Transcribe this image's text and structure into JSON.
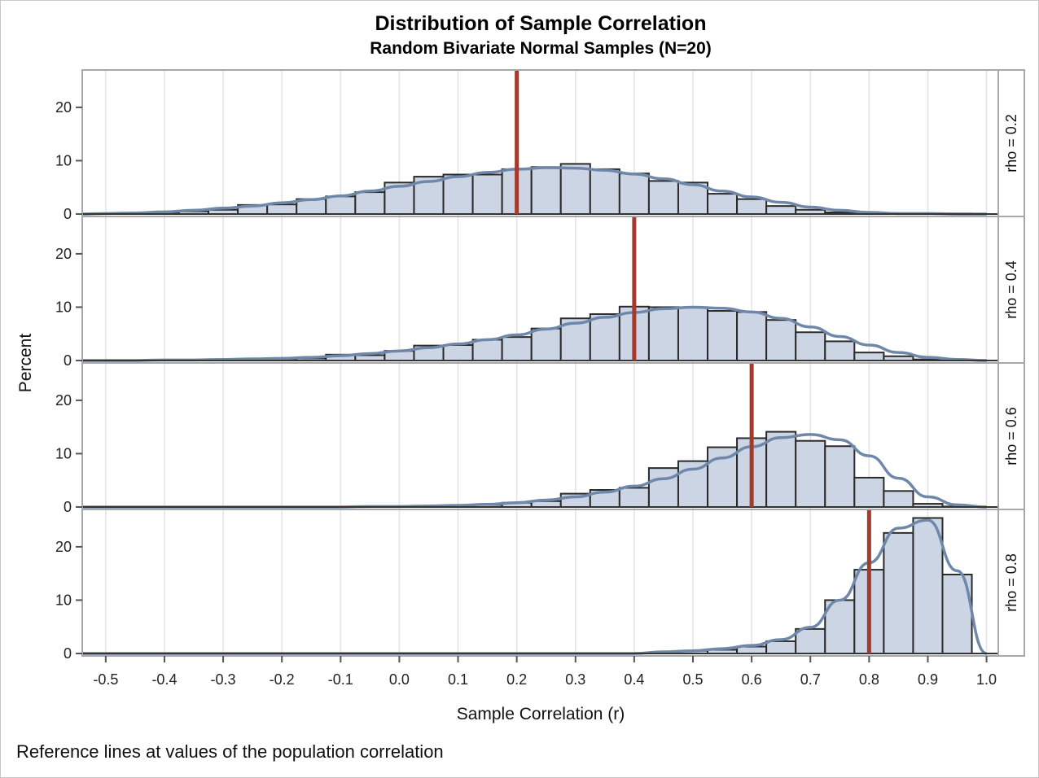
{
  "chart_data": {
    "type": "bar",
    "title": "Distribution of Sample Correlation",
    "subtitle": "Random Bivariate Normal Samples (N=20)",
    "xlabel": "Sample Correlation (r)",
    "ylabel": "Percent",
    "footnote": "Reference lines at values of the population correlation",
    "xlim": [
      -0.54,
      1.02
    ],
    "ylim": [
      0,
      27
    ],
    "x_ticks": [
      -0.5,
      -0.4,
      -0.3,
      -0.2,
      -0.1,
      0.0,
      0.1,
      0.2,
      0.3,
      0.4,
      0.5,
      0.6,
      0.7,
      0.8,
      0.9,
      1.0
    ],
    "x_tick_labels": [
      "-0.5",
      "-0.4",
      "-0.3",
      "-0.2",
      "-0.1",
      "0.0",
      "0.1",
      "0.2",
      "0.3",
      "0.4",
      "0.5",
      "0.6",
      "0.7",
      "0.8",
      "0.9",
      "1.0"
    ],
    "y_ticks": [
      0,
      10,
      20
    ],
    "y_tick_labels": [
      "0",
      "10",
      "20"
    ],
    "bin_width": 0.05,
    "grid": "vertical",
    "panels": [
      {
        "label": "rho = 0.2",
        "rho": 0.2,
        "bins_left": [
          -0.525,
          -0.475,
          -0.425,
          -0.375,
          -0.325,
          -0.275,
          -0.225,
          -0.175,
          -0.125,
          -0.075,
          -0.025,
          0.025,
          0.075,
          0.125,
          0.175,
          0.225,
          0.275,
          0.325,
          0.375,
          0.425,
          0.475,
          0.525,
          0.575,
          0.625,
          0.675,
          0.725,
          0.775,
          0.825,
          0.875,
          0.925
        ],
        "values": [
          0.1,
          0.1,
          0.3,
          0.5,
          0.8,
          1.7,
          1.8,
          2.8,
          3.3,
          4.1,
          5.9,
          7.0,
          7.4,
          7.4,
          8.4,
          8.8,
          9.4,
          8.4,
          7.6,
          6.2,
          5.9,
          3.8,
          2.8,
          1.5,
          0.8,
          0.3,
          0.2,
          0.1,
          0.1,
          0.1
        ],
        "density": [
          0.1,
          0.2,
          0.4,
          0.7,
          1.1,
          1.5,
          2.1,
          2.7,
          3.4,
          4.3,
          5.2,
          6.1,
          7.0,
          7.8,
          8.4,
          8.7,
          8.6,
          8.2,
          7.5,
          6.6,
          5.5,
          4.3,
          3.2,
          2.2,
          1.3,
          0.7,
          0.3,
          0.1,
          0.1,
          0.0
        ]
      },
      {
        "label": "rho = 0.4",
        "rho": 0.4,
        "bins_left": [
          -0.525,
          -0.475,
          -0.425,
          -0.375,
          -0.325,
          -0.275,
          -0.225,
          -0.175,
          -0.125,
          -0.075,
          -0.025,
          0.025,
          0.075,
          0.125,
          0.175,
          0.225,
          0.275,
          0.325,
          0.375,
          0.425,
          0.475,
          0.525,
          0.575,
          0.625,
          0.675,
          0.725,
          0.775,
          0.825,
          0.875,
          0.925
        ],
        "values": [
          0.0,
          0.0,
          0.0,
          0.0,
          0.1,
          0.1,
          0.2,
          0.4,
          1.1,
          1.0,
          1.8,
          2.8,
          2.9,
          3.9,
          4.4,
          6.0,
          7.9,
          8.7,
          10.1,
          10.0,
          10.0,
          9.3,
          9.1,
          7.6,
          5.3,
          3.6,
          1.5,
          0.8,
          0.2,
          0.1
        ],
        "density": [
          0.0,
          0.0,
          0.1,
          0.1,
          0.2,
          0.3,
          0.4,
          0.6,
          0.9,
          1.3,
          1.8,
          2.4,
          3.1,
          3.9,
          4.8,
          5.9,
          7.0,
          8.1,
          9.0,
          9.7,
          10.0,
          9.8,
          9.1,
          7.9,
          6.3,
          4.5,
          2.9,
          1.5,
          0.6,
          0.2
        ]
      },
      {
        "label": "rho = 0.6",
        "rho": 0.6,
        "bins_left": [
          -0.525,
          -0.475,
          -0.425,
          -0.375,
          -0.325,
          -0.275,
          -0.225,
          -0.175,
          -0.125,
          -0.075,
          -0.025,
          0.025,
          0.075,
          0.125,
          0.175,
          0.225,
          0.275,
          0.325,
          0.375,
          0.425,
          0.475,
          0.525,
          0.575,
          0.625,
          0.675,
          0.725,
          0.775,
          0.825,
          0.875,
          0.925
        ],
        "values": [
          0.0,
          0.0,
          0.0,
          0.0,
          0.0,
          0.0,
          0.0,
          0.0,
          0.0,
          0.1,
          0.1,
          0.2,
          0.3,
          0.4,
          0.8,
          1.1,
          2.5,
          3.2,
          3.6,
          7.3,
          8.6,
          11.2,
          12.9,
          14.1,
          12.4,
          11.4,
          5.5,
          3.0,
          0.6,
          0.1
        ],
        "density": [
          0.0,
          0.0,
          0.0,
          0.0,
          0.0,
          0.0,
          0.0,
          0.0,
          0.0,
          0.1,
          0.1,
          0.2,
          0.3,
          0.5,
          0.8,
          1.3,
          1.9,
          2.8,
          3.9,
          5.3,
          7.1,
          9.2,
          11.3,
          13.0,
          13.6,
          12.6,
          9.6,
          5.4,
          1.9,
          0.4
        ]
      },
      {
        "label": "rho = 0.8",
        "rho": 0.8,
        "bins_left": [
          -0.525,
          -0.475,
          -0.425,
          -0.375,
          -0.325,
          -0.275,
          -0.225,
          -0.175,
          -0.125,
          -0.075,
          -0.025,
          0.025,
          0.075,
          0.125,
          0.175,
          0.225,
          0.275,
          0.325,
          0.375,
          0.425,
          0.475,
          0.525,
          0.575,
          0.625,
          0.675,
          0.725,
          0.775,
          0.825,
          0.875,
          0.925
        ],
        "values": [
          0.0,
          0.0,
          0.0,
          0.0,
          0.0,
          0.0,
          0.0,
          0.0,
          0.0,
          0.0,
          0.0,
          0.0,
          0.0,
          0.0,
          0.0,
          0.0,
          0.0,
          0.0,
          0.0,
          0.2,
          0.5,
          0.7,
          1.3,
          2.3,
          4.6,
          10.0,
          15.7,
          22.6,
          25.4,
          14.8
        ],
        "density": [
          0.0,
          0.0,
          0.0,
          0.0,
          0.0,
          0.0,
          0.0,
          0.0,
          0.0,
          0.0,
          0.0,
          0.0,
          0.0,
          0.0,
          0.0,
          0.0,
          0.0,
          0.0,
          0.0,
          0.3,
          0.5,
          0.9,
          1.5,
          2.6,
          4.9,
          10.0,
          17.0,
          23.5,
          25.0,
          15.5
        ]
      }
    ]
  }
}
